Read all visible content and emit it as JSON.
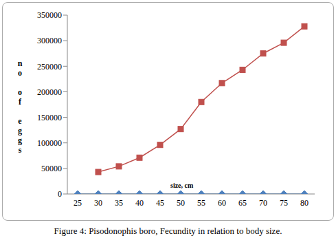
{
  "chart_data": {
    "type": "line",
    "title": "Figure 4: Pisodonophis boro, Fecundity in relation to body size.",
    "x_label": "size, cm",
    "y_label": "no of eggs",
    "categories": [
      "25",
      "30",
      "35",
      "40",
      "45",
      "50",
      "55",
      "60",
      "65",
      "70",
      "75",
      "80"
    ],
    "series": [
      {
        "color": "#4F81BD",
        "marker": "diamond",
        "values": [
          0,
          0,
          0,
          0,
          0,
          0,
          0,
          0,
          0,
          0,
          0,
          0
        ]
      },
      {
        "color": "#C0504D",
        "marker": "square",
        "values": [
          null,
          43000,
          54000,
          71000,
          96000,
          127000,
          180000,
          217000,
          243000,
          275000,
          296000,
          328000
        ]
      }
    ],
    "ylim": [
      0,
      350000
    ],
    "yticks": [
      0,
      50000,
      100000,
      150000,
      200000,
      250000,
      300000,
      350000
    ],
    "grid": false
  }
}
